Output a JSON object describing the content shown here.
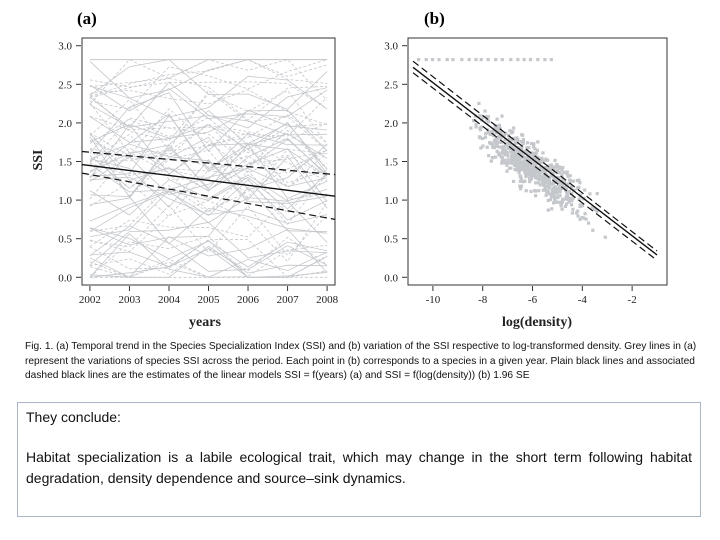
{
  "chart_data": [
    {
      "type": "line",
      "panel_label": "(a)",
      "xlabel": "years",
      "ylabel": "SSI",
      "x_ticks": [
        "2002",
        "2003",
        "2004",
        "2005",
        "2006",
        "2007",
        "2008"
      ],
      "y_ticks": [
        "0.0",
        "0.5",
        "1.0",
        "1.5",
        "2.0",
        "2.5",
        "3.0"
      ],
      "xlim": [
        2001.8,
        2008.2
      ],
      "ylim": [
        -0.1,
        3.1
      ],
      "grid": false,
      "series": [
        {
          "role": "fit",
          "style": "solid",
          "color": "#111111",
          "x": [
            2001.8,
            2008.2
          ],
          "y": [
            1.46,
            1.05
          ]
        },
        {
          "role": "upper-ci",
          "style": "dashed",
          "color": "#111111",
          "x": [
            2001.8,
            2008.2
          ],
          "y": [
            1.63,
            1.33
          ]
        },
        {
          "role": "lower-ci",
          "style": "dashed",
          "color": "#111111",
          "x": [
            2001.8,
            2008.2
          ],
          "y": [
            1.35,
            0.75
          ]
        }
      ],
      "species_lines": {
        "color": "#c4c7cb",
        "description_count": 70,
        "y_range": [
          0.0,
          2.85
        ],
        "top_level": 2.82
      }
    },
    {
      "type": "scatter",
      "panel_label": "(b)",
      "xlabel": "log(density)",
      "ylabel": "",
      "x_ticks": [
        "-10",
        "-8",
        "-6",
        "-4",
        "-2"
      ],
      "y_ticks": [
        "0.0",
        "0.5",
        "1.0",
        "1.5",
        "2.0",
        "2.5",
        "3.0"
      ],
      "xlim": [
        -11.0,
        -0.6
      ],
      "ylim": [
        -0.1,
        3.1
      ],
      "grid": false,
      "points": {
        "color": "#c4c7cb",
        "trend_y_at_x_minus10": 2.38,
        "trend_y_at_x_minus2": 0.46,
        "spread": 0.32,
        "cap_value": 2.82,
        "x_range": [
          -10.7,
          -1.3
        ]
      },
      "series": [
        {
          "role": "fit",
          "style": "solid",
          "color": "#111111",
          "x": [
            -10.8,
            -1.0
          ],
          "y": [
            2.72,
            0.29
          ]
        },
        {
          "role": "upper-ci",
          "style": "dashed",
          "color": "#111111",
          "x": [
            -10.8,
            -1.0
          ],
          "y": [
            2.8,
            0.34
          ]
        },
        {
          "role": "lower-ci",
          "style": "dashed",
          "color": "#111111",
          "x": [
            -10.8,
            -1.0
          ],
          "y": [
            2.65,
            0.22
          ]
        }
      ]
    }
  ],
  "caption": "Fig. 1. (a) Temporal trend in the Species Specialization Index (SSI) and (b) variation of the SSI respective to log-transformed density. Grey lines in (a) represent the variations of species SSI across the period. Each point in (b) corresponds to a species in a given year. Plain black lines and associated dashed black lines are the estimates of the linear models SSI = f(years) (a) and SSI = f(log(density)) (b) 1.96 SE",
  "conclusion": {
    "heading": "They conclude:",
    "text": "Habitat specialization is a labile ecological trait, which may change in the short term following habitat degradation, density dependence and source–sink dynamics."
  }
}
